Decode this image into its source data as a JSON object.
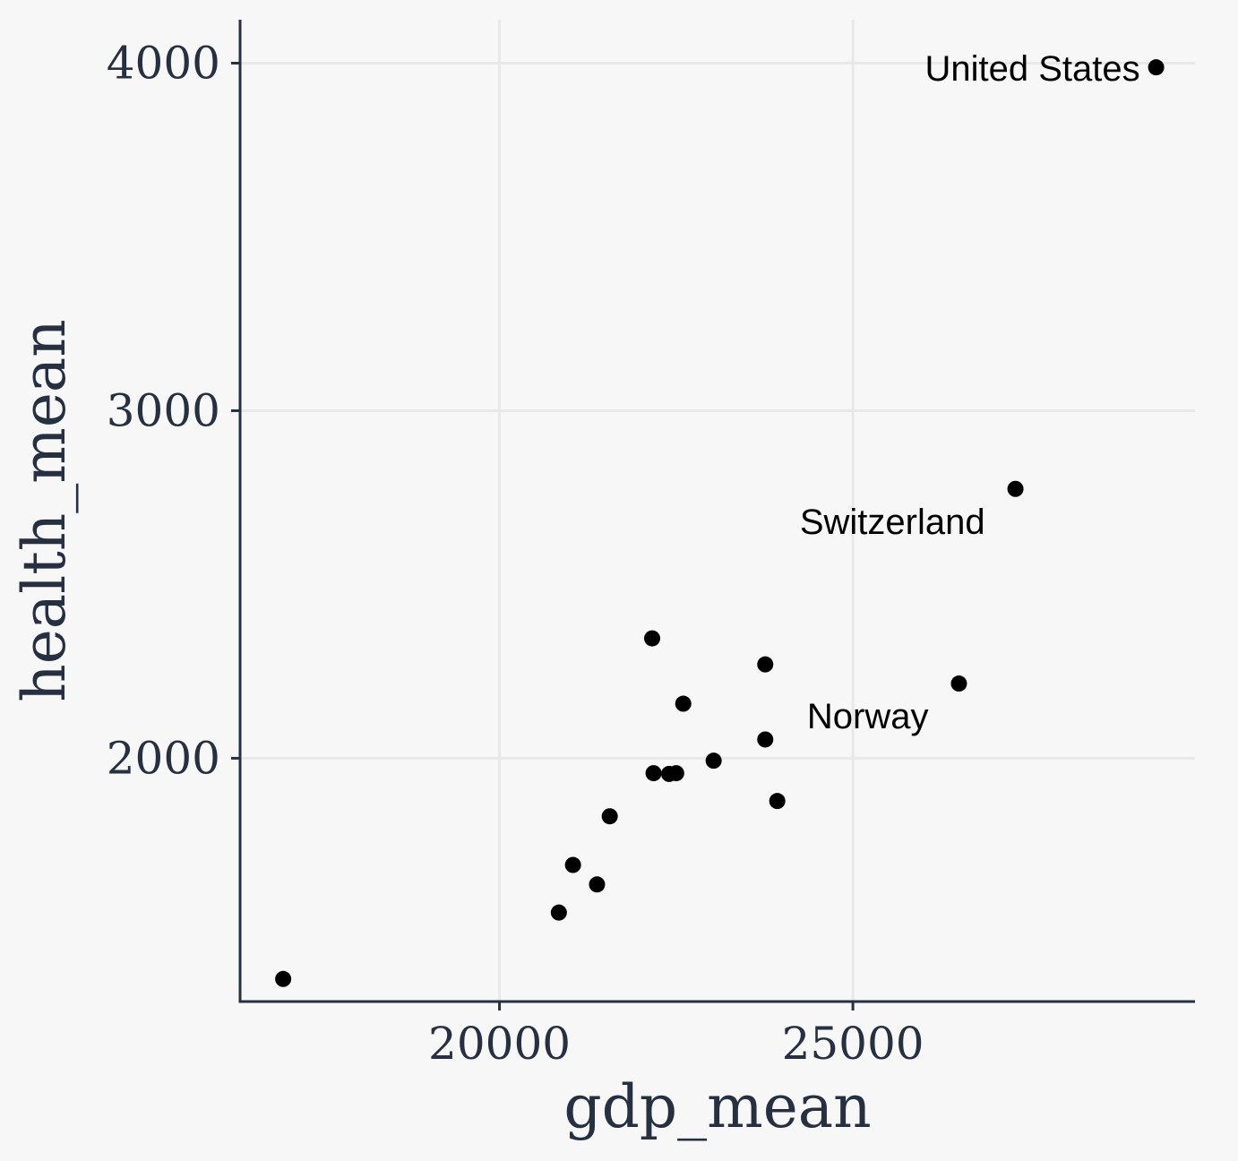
{
  "chart_data": {
    "type": "scatter",
    "xlabel": "gdp_mean",
    "ylabel": "health_mean",
    "xlim": [
      16330,
      29840
    ],
    "ylim": [
      1300,
      4125
    ],
    "x_ticks": [
      20000,
      25000
    ],
    "y_ticks": [
      2000,
      3000,
      4000
    ],
    "grid": true,
    "colors": {
      "point": "#000000",
      "axis": "#263040",
      "grid": "#e8e8e8",
      "background": "#f7f7f7"
    },
    "points": [
      {
        "x": 16940,
        "y": 1365
      },
      {
        "x": 20840,
        "y": 1556
      },
      {
        "x": 21040,
        "y": 1693
      },
      {
        "x": 21380,
        "y": 1637
      },
      {
        "x": 21560,
        "y": 1833
      },
      {
        "x": 22180,
        "y": 1957
      },
      {
        "x": 22160,
        "y": 2345
      },
      {
        "x": 22400,
        "y": 1955
      },
      {
        "x": 22500,
        "y": 1957
      },
      {
        "x": 22600,
        "y": 2157
      },
      {
        "x": 23030,
        "y": 1993
      },
      {
        "x": 23760,
        "y": 2270
      },
      {
        "x": 23760,
        "y": 2054
      },
      {
        "x": 23930,
        "y": 1877
      },
      {
        "x": 26500,
        "y": 2215
      },
      {
        "x": 27300,
        "y": 2775
      },
      {
        "x": 29290,
        "y": 3988
      }
    ],
    "labels": [
      {
        "text": "United States",
        "x": 29290,
        "y": 3988,
        "anchor": "end"
      },
      {
        "text": "Switzerland",
        "x": 27300,
        "y": 2775,
        "anchor": "below-left"
      },
      {
        "text": "Norway",
        "x": 26500,
        "y": 2215,
        "anchor": "below-left"
      }
    ]
  }
}
